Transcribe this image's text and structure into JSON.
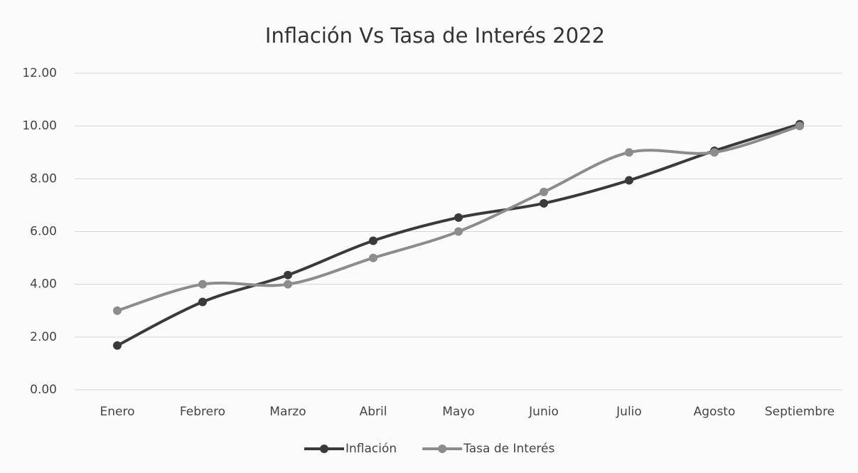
{
  "chart_data": {
    "type": "line",
    "title": "Inflación Vs Tasa de Interés 2022",
    "categories": [
      "Enero",
      "Febrero",
      "Marzo",
      "Abril",
      "Mayo",
      "Junio",
      "Julio",
      "Agosto",
      "Septiembre"
    ],
    "series": [
      {
        "name": "Inflación",
        "color": "#3a3a3a",
        "values": [
          1.68,
          3.33,
          4.35,
          5.65,
          6.53,
          7.07,
          7.94,
          9.06,
          10.07
        ]
      },
      {
        "name": "Tasa de Interés",
        "color": "#8c8c8c",
        "values": [
          3,
          4,
          4,
          5,
          6,
          7.5,
          9,
          9,
          10
        ]
      }
    ],
    "ylim": [
      0,
      12
    ],
    "yticks": [
      {
        "value": 0,
        "label": "0.00"
      },
      {
        "value": 2,
        "label": "2.00"
      },
      {
        "value": 4,
        "label": "4.00"
      },
      {
        "value": 6,
        "label": "6.00"
      },
      {
        "value": 8,
        "label": "8.00"
      },
      {
        "value": 10,
        "label": "10.00"
      },
      {
        "value": 12,
        "label": "12.00"
      }
    ],
    "grid": true,
    "smooth": true,
    "legend": "bottom"
  }
}
